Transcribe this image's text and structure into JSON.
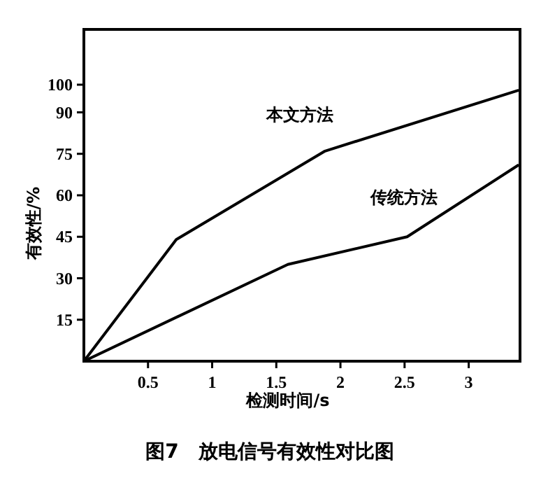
{
  "chart_data": {
    "type": "line",
    "title": "图7　放电信号有效性对比图",
    "xlabel": "检测时间/s",
    "ylabel": "有效性/%",
    "xlim": [
      0,
      3.4
    ],
    "ylim": [
      0,
      120
    ],
    "xticks": [
      0.5,
      1,
      1.5,
      2,
      2.5,
      3
    ],
    "yticks": [
      15,
      30,
      45,
      60,
      75,
      90,
      100
    ],
    "grid": false,
    "marker": "none",
    "line_style": "solid",
    "series": [
      {
        "name": "本文方法",
        "color": "#000000",
        "x": [
          0,
          0.72,
          1.88,
          3.39
        ],
        "values": [
          0,
          44,
          76,
          98
        ]
      },
      {
        "name": "传统方法",
        "color": "#000000",
        "x": [
          0,
          1.59,
          2.52,
          3.39
        ],
        "values": [
          0,
          35,
          45,
          71
        ]
      }
    ]
  }
}
